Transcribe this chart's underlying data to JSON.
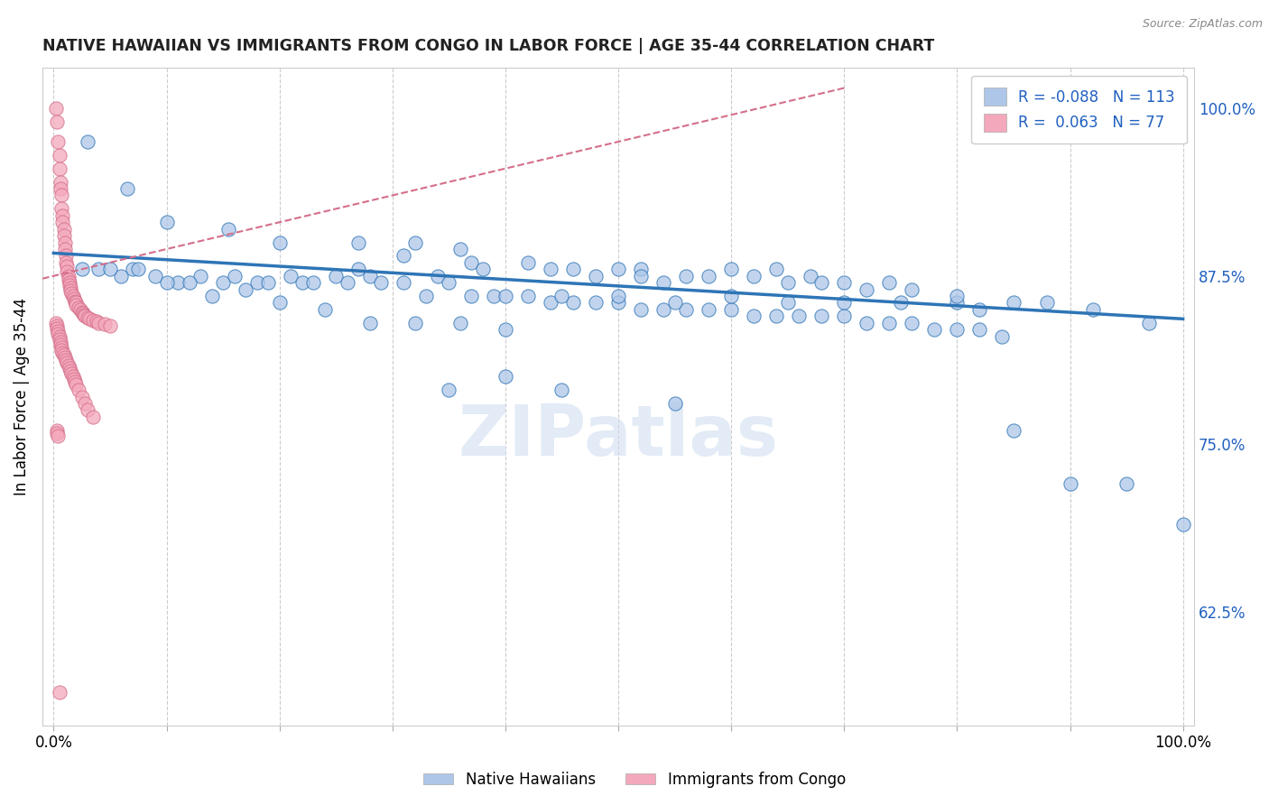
{
  "title": "NATIVE HAWAIIAN VS IMMIGRANTS FROM CONGO IN LABOR FORCE | AGE 35-44 CORRELATION CHART",
  "source": "Source: ZipAtlas.com",
  "ylabel": "In Labor Force | Age 35-44",
  "legend_label1": "Native Hawaiians",
  "legend_label2": "Immigrants from Congo",
  "R1": -0.088,
  "N1": 113,
  "R2": 0.063,
  "N2": 77,
  "color_blue": "#aec6e8",
  "color_pink": "#f4a8bb",
  "color_line_blue": "#2e75b6",
  "color_line_pink": "#d46f8a",
  "watermark": "ZIPatlas",
  "xlim": [
    -0.01,
    1.01
  ],
  "ylim": [
    0.54,
    1.03
  ],
  "yticks": [
    0.625,
    0.75,
    0.875,
    1.0
  ],
  "ytick_labels": [
    "62.5%",
    "75.0%",
    "87.5%",
    "100.0%"
  ],
  "xticks": [
    0.0,
    0.1,
    0.2,
    0.3,
    0.4,
    0.5,
    0.6,
    0.7,
    0.8,
    0.9,
    1.0
  ],
  "blue_x": [
    0.03,
    0.065,
    0.1,
    0.155,
    0.2,
    0.27,
    0.32,
    0.27,
    0.31,
    0.28,
    0.36,
    0.37,
    0.38,
    0.34,
    0.42,
    0.44,
    0.46,
    0.48,
    0.52,
    0.54,
    0.5,
    0.52,
    0.56,
    0.58,
    0.6,
    0.62,
    0.64,
    0.65,
    0.67,
    0.68,
    0.7,
    0.72,
    0.74,
    0.76,
    0.8,
    0.82,
    0.85,
    0.88,
    0.92,
    0.97,
    0.04,
    0.06,
    0.07,
    0.09,
    0.11,
    0.13,
    0.15,
    0.16,
    0.18,
    0.19,
    0.21,
    0.22,
    0.23,
    0.25,
    0.26,
    0.29,
    0.31,
    0.33,
    0.35,
    0.37,
    0.39,
    0.4,
    0.42,
    0.44,
    0.46,
    0.48,
    0.5,
    0.52,
    0.54,
    0.56,
    0.58,
    0.6,
    0.62,
    0.64,
    0.66,
    0.68,
    0.7,
    0.72,
    0.74,
    0.76,
    0.78,
    0.8,
    0.82,
    0.84,
    0.025,
    0.05,
    0.075,
    0.1,
    0.12,
    0.14,
    0.17,
    0.2,
    0.24,
    0.28,
    0.32,
    0.36,
    0.4,
    0.45,
    0.5,
    0.55,
    0.6,
    0.65,
    0.7,
    0.75,
    0.8,
    0.85,
    0.9,
    0.95,
    1.0,
    0.35,
    0.4,
    0.45,
    0.55
  ],
  "blue_y": [
    0.975,
    0.94,
    0.915,
    0.91,
    0.9,
    0.9,
    0.9,
    0.88,
    0.89,
    0.875,
    0.895,
    0.885,
    0.88,
    0.875,
    0.885,
    0.88,
    0.88,
    0.875,
    0.88,
    0.87,
    0.88,
    0.875,
    0.875,
    0.875,
    0.88,
    0.875,
    0.88,
    0.87,
    0.875,
    0.87,
    0.87,
    0.865,
    0.87,
    0.865,
    0.855,
    0.85,
    0.855,
    0.855,
    0.85,
    0.84,
    0.88,
    0.875,
    0.88,
    0.875,
    0.87,
    0.875,
    0.87,
    0.875,
    0.87,
    0.87,
    0.875,
    0.87,
    0.87,
    0.875,
    0.87,
    0.87,
    0.87,
    0.86,
    0.87,
    0.86,
    0.86,
    0.86,
    0.86,
    0.855,
    0.855,
    0.855,
    0.855,
    0.85,
    0.85,
    0.85,
    0.85,
    0.85,
    0.845,
    0.845,
    0.845,
    0.845,
    0.845,
    0.84,
    0.84,
    0.84,
    0.835,
    0.835,
    0.835,
    0.83,
    0.88,
    0.88,
    0.88,
    0.87,
    0.87,
    0.86,
    0.865,
    0.855,
    0.85,
    0.84,
    0.84,
    0.84,
    0.835,
    0.86,
    0.86,
    0.855,
    0.86,
    0.855,
    0.855,
    0.855,
    0.86,
    0.76,
    0.72,
    0.72,
    0.69,
    0.79,
    0.8,
    0.79,
    0.78
  ],
  "pink_x": [
    0.002,
    0.003,
    0.004,
    0.005,
    0.005,
    0.006,
    0.006,
    0.007,
    0.007,
    0.008,
    0.008,
    0.009,
    0.009,
    0.01,
    0.01,
    0.011,
    0.011,
    0.012,
    0.012,
    0.013,
    0.013,
    0.014,
    0.014,
    0.015,
    0.015,
    0.016,
    0.017,
    0.018,
    0.019,
    0.02,
    0.02,
    0.022,
    0.024,
    0.025,
    0.026,
    0.027,
    0.028,
    0.03,
    0.032,
    0.035,
    0.038,
    0.04,
    0.045,
    0.05,
    0.002,
    0.003,
    0.003,
    0.004,
    0.004,
    0.005,
    0.005,
    0.006,
    0.006,
    0.007,
    0.007,
    0.008,
    0.009,
    0.01,
    0.011,
    0.012,
    0.013,
    0.014,
    0.015,
    0.016,
    0.017,
    0.018,
    0.019,
    0.02,
    0.022,
    0.025,
    0.028,
    0.03,
    0.035,
    0.003,
    0.003,
    0.004,
    0.005
  ],
  "pink_y": [
    1.0,
    0.99,
    0.975,
    0.965,
    0.955,
    0.945,
    0.94,
    0.935,
    0.925,
    0.92,
    0.915,
    0.91,
    0.905,
    0.9,
    0.895,
    0.89,
    0.885,
    0.882,
    0.878,
    0.875,
    0.872,
    0.87,
    0.868,
    0.866,
    0.864,
    0.862,
    0.86,
    0.858,
    0.856,
    0.855,
    0.853,
    0.851,
    0.85,
    0.848,
    0.847,
    0.846,
    0.845,
    0.844,
    0.843,
    0.842,
    0.841,
    0.84,
    0.839,
    0.838,
    0.84,
    0.838,
    0.836,
    0.834,
    0.832,
    0.83,
    0.828,
    0.826,
    0.824,
    0.822,
    0.82,
    0.818,
    0.816,
    0.814,
    0.812,
    0.81,
    0.808,
    0.806,
    0.804,
    0.802,
    0.8,
    0.798,
    0.796,
    0.794,
    0.79,
    0.785,
    0.78,
    0.775,
    0.77,
    0.76,
    0.758,
    0.756,
    0.565
  ]
}
